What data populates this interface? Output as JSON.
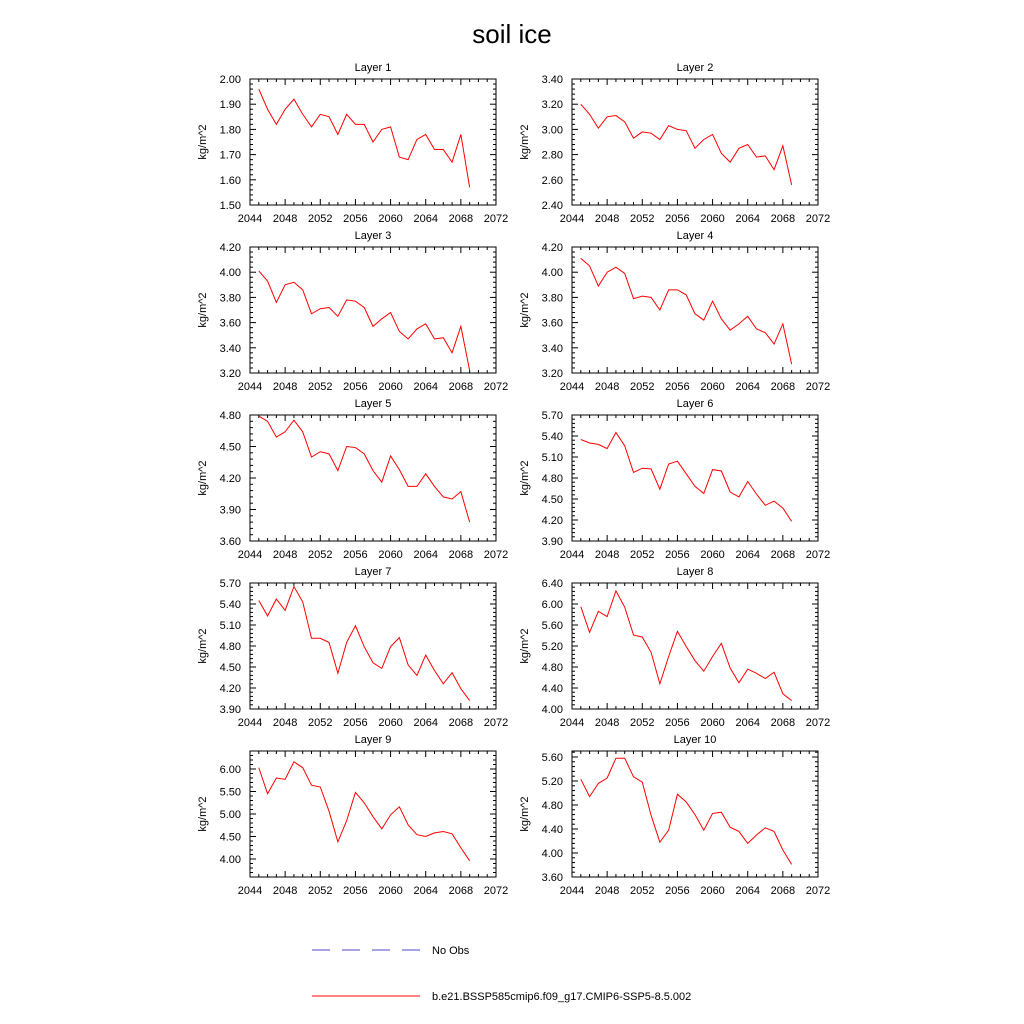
{
  "title": "soil ice",
  "legend": {
    "obs_label": "No Obs",
    "model_label": "b.e21.BSSP585cmip6.f09_g17.CMIP6-SSP5-8.5.002",
    "obs_color": "#4a4acc",
    "model_color": "#ff0000"
  },
  "chart_data": [
    {
      "type": "line",
      "title": "Layer 1",
      "ylabel": "kg/m^2",
      "xlim": [
        2044,
        2072
      ],
      "ylim": [
        1.5,
        2.0
      ],
      "xticks": [
        2044,
        2048,
        2052,
        2056,
        2060,
        2064,
        2068,
        2072
      ],
      "yticks": [
        "1.50",
        "1.60",
        "1.70",
        "1.80",
        "1.90",
        "2.00"
      ],
      "x": [
        2045,
        2046,
        2047,
        2048,
        2049,
        2050,
        2051,
        2052,
        2053,
        2054,
        2055,
        2056,
        2057,
        2058,
        2059,
        2060,
        2061,
        2062,
        2063,
        2064,
        2065,
        2066,
        2067,
        2068,
        2069
      ],
      "y": [
        1.96,
        1.88,
        1.82,
        1.88,
        1.92,
        1.86,
        1.81,
        1.86,
        1.85,
        1.78,
        1.86,
        1.82,
        1.82,
        1.75,
        1.8,
        1.81,
        1.69,
        1.68,
        1.76,
        1.78,
        1.72,
        1.72,
        1.67,
        1.78,
        1.57
      ],
      "grid": false
    },
    {
      "type": "line",
      "title": "Layer 2",
      "ylabel": "kg/m^2",
      "xlim": [
        2044,
        2072
      ],
      "ylim": [
        2.4,
        3.4
      ],
      "xticks": [
        2044,
        2048,
        2052,
        2056,
        2060,
        2064,
        2068,
        2072
      ],
      "yticks": [
        "2.40",
        "2.60",
        "2.80",
        "3.00",
        "3.20",
        "3.40"
      ],
      "x": [
        2045,
        2046,
        2047,
        2048,
        2049,
        2050,
        2051,
        2052,
        2053,
        2054,
        2055,
        2056,
        2057,
        2058,
        2059,
        2060,
        2061,
        2062,
        2063,
        2064,
        2065,
        2066,
        2067,
        2068,
        2069
      ],
      "y": [
        3.2,
        3.12,
        3.01,
        3.1,
        3.11,
        3.06,
        2.93,
        2.98,
        2.97,
        2.92,
        3.03,
        3.0,
        2.99,
        2.85,
        2.92,
        2.96,
        2.81,
        2.74,
        2.85,
        2.88,
        2.78,
        2.79,
        2.68,
        2.87,
        2.56
      ],
      "grid": false
    },
    {
      "type": "line",
      "title": "Layer 3",
      "ylabel": "kg/m^2",
      "xlim": [
        2044,
        2072
      ],
      "ylim": [
        3.2,
        4.2
      ],
      "xticks": [
        2044,
        2048,
        2052,
        2056,
        2060,
        2064,
        2068,
        2072
      ],
      "yticks": [
        "3.20",
        "3.40",
        "3.60",
        "3.80",
        "4.00",
        "4.20"
      ],
      "x": [
        2045,
        2046,
        2047,
        2048,
        2049,
        2050,
        2051,
        2052,
        2053,
        2054,
        2055,
        2056,
        2057,
        2058,
        2059,
        2060,
        2061,
        2062,
        2063,
        2064,
        2065,
        2066,
        2067,
        2068,
        2069
      ],
      "y": [
        4.01,
        3.93,
        3.76,
        3.9,
        3.92,
        3.86,
        3.67,
        3.71,
        3.72,
        3.65,
        3.78,
        3.77,
        3.72,
        3.57,
        3.63,
        3.68,
        3.53,
        3.47,
        3.55,
        3.59,
        3.47,
        3.48,
        3.36,
        3.57,
        3.22
      ],
      "grid": false
    },
    {
      "type": "line",
      "title": "Layer 4",
      "ylabel": "kg/m^2",
      "xlim": [
        2044,
        2072
      ],
      "ylim": [
        3.2,
        4.2
      ],
      "xticks": [
        2044,
        2048,
        2052,
        2056,
        2060,
        2064,
        2068,
        2072
      ],
      "yticks": [
        "3.20",
        "3.40",
        "3.60",
        "3.80",
        "4.00",
        "4.20"
      ],
      "x": [
        2045,
        2046,
        2047,
        2048,
        2049,
        2050,
        2051,
        2052,
        2053,
        2054,
        2055,
        2056,
        2057,
        2058,
        2059,
        2060,
        2061,
        2062,
        2063,
        2064,
        2065,
        2066,
        2067,
        2068,
        2069
      ],
      "y": [
        4.11,
        4.05,
        3.89,
        4.0,
        4.04,
        3.99,
        3.79,
        3.81,
        3.8,
        3.7,
        3.86,
        3.86,
        3.82,
        3.67,
        3.62,
        3.77,
        3.63,
        3.54,
        3.59,
        3.65,
        3.55,
        3.52,
        3.43,
        3.59,
        3.27
      ],
      "grid": false
    },
    {
      "type": "line",
      "title": "Layer 5",
      "ylabel": "kg/m^2",
      "xlim": [
        2044,
        2072
      ],
      "ylim": [
        3.6,
        4.8
      ],
      "xticks": [
        2044,
        2048,
        2052,
        2056,
        2060,
        2064,
        2068,
        2072
      ],
      "yticks": [
        "3.60",
        "3.90",
        "4.20",
        "4.50",
        "4.80"
      ],
      "x": [
        2045,
        2046,
        2047,
        2048,
        2049,
        2050,
        2051,
        2052,
        2053,
        2054,
        2055,
        2056,
        2057,
        2058,
        2059,
        2060,
        2061,
        2062,
        2063,
        2064,
        2065,
        2066,
        2067,
        2068,
        2069
      ],
      "y": [
        4.79,
        4.74,
        4.59,
        4.64,
        4.75,
        4.64,
        4.4,
        4.45,
        4.43,
        4.27,
        4.5,
        4.49,
        4.43,
        4.27,
        4.16,
        4.41,
        4.28,
        4.12,
        4.12,
        4.24,
        4.12,
        4.02,
        4.0,
        4.07,
        3.78
      ],
      "grid": false
    },
    {
      "type": "line",
      "title": "Layer 6",
      "ylabel": "kg/m^2",
      "xlim": [
        2044,
        2072
      ],
      "ylim": [
        3.9,
        5.7
      ],
      "xticks": [
        2044,
        2048,
        2052,
        2056,
        2060,
        2064,
        2068,
        2072
      ],
      "yticks": [
        "3.90",
        "4.20",
        "4.50",
        "4.80",
        "5.10",
        "5.40",
        "5.70"
      ],
      "x": [
        2045,
        2046,
        2047,
        2048,
        2049,
        2050,
        2051,
        2052,
        2053,
        2054,
        2055,
        2056,
        2057,
        2058,
        2059,
        2060,
        2061,
        2062,
        2063,
        2064,
        2065,
        2066,
        2067,
        2068,
        2069
      ],
      "y": [
        5.35,
        5.3,
        5.28,
        5.22,
        5.45,
        5.26,
        4.88,
        4.94,
        4.93,
        4.64,
        5.0,
        5.04,
        4.86,
        4.68,
        4.58,
        4.92,
        4.9,
        4.6,
        4.53,
        4.75,
        4.57,
        4.41,
        4.47,
        4.37,
        4.18
      ],
      "grid": false
    },
    {
      "type": "line",
      "title": "Layer 7",
      "ylabel": "kg/m^2",
      "xlim": [
        2044,
        2072
      ],
      "ylim": [
        3.9,
        5.7
      ],
      "xticks": [
        2044,
        2048,
        2052,
        2056,
        2060,
        2064,
        2068,
        2072
      ],
      "yticks": [
        "3.90",
        "4.20",
        "4.50",
        "4.80",
        "5.10",
        "5.40",
        "5.70"
      ],
      "x": [
        2045,
        2046,
        2047,
        2048,
        2049,
        2050,
        2051,
        2052,
        2053,
        2054,
        2055,
        2056,
        2057,
        2058,
        2059,
        2060,
        2061,
        2062,
        2063,
        2064,
        2065,
        2066,
        2067,
        2068,
        2069
      ],
      "y": [
        5.45,
        5.23,
        5.47,
        5.31,
        5.65,
        5.43,
        4.91,
        4.91,
        4.85,
        4.41,
        4.85,
        5.09,
        4.79,
        4.56,
        4.48,
        4.79,
        4.92,
        4.53,
        4.38,
        4.67,
        4.45,
        4.26,
        4.42,
        4.19,
        4.02
      ],
      "grid": false
    },
    {
      "type": "line",
      "title": "Layer 8",
      "ylabel": "kg/m^2",
      "xlim": [
        2044,
        2072
      ],
      "ylim": [
        4.0,
        6.4
      ],
      "xticks": [
        2044,
        2048,
        2052,
        2056,
        2060,
        2064,
        2068,
        2072
      ],
      "yticks": [
        "4.00",
        "4.40",
        "4.80",
        "5.20",
        "5.60",
        "6.00",
        "6.40"
      ],
      "x": [
        2045,
        2046,
        2047,
        2048,
        2049,
        2050,
        2051,
        2052,
        2053,
        2054,
        2055,
        2056,
        2057,
        2058,
        2059,
        2060,
        2061,
        2062,
        2063,
        2064,
        2065,
        2066,
        2067,
        2068,
        2069
      ],
      "y": [
        5.95,
        5.46,
        5.86,
        5.76,
        6.25,
        5.94,
        5.41,
        5.37,
        5.08,
        4.48,
        5.0,
        5.48,
        5.19,
        4.92,
        4.72,
        5.0,
        5.25,
        4.78,
        4.5,
        4.76,
        4.68,
        4.58,
        4.7,
        4.29,
        4.16
      ],
      "grid": false
    },
    {
      "type": "line",
      "title": "Layer 9",
      "ylabel": "kg/m^2",
      "xlim": [
        2044,
        2072
      ],
      "ylim": [
        3.6,
        6.4
      ],
      "xticks": [
        2044,
        2048,
        2052,
        2056,
        2060,
        2064,
        2068,
        2072
      ],
      "yticks": [
        "4.00",
        "4.50",
        "5.00",
        "5.50",
        "6.00"
      ],
      "x": [
        2045,
        2046,
        2047,
        2048,
        2049,
        2050,
        2051,
        2052,
        2053,
        2054,
        2055,
        2056,
        2057,
        2058,
        2059,
        2060,
        2061,
        2062,
        2063,
        2064,
        2065,
        2066,
        2067,
        2068,
        2069
      ],
      "y": [
        6.03,
        5.45,
        5.8,
        5.77,
        6.16,
        6.03,
        5.64,
        5.6,
        5.06,
        4.38,
        4.85,
        5.48,
        5.25,
        4.94,
        4.67,
        4.98,
        5.16,
        4.76,
        4.54,
        4.5,
        4.58,
        4.61,
        4.56,
        4.25,
        3.96
      ],
      "grid": false
    },
    {
      "type": "line",
      "title": "Layer 10",
      "ylabel": "kg/m^2",
      "xlim": [
        2044,
        2072
      ],
      "ylim": [
        3.6,
        5.7
      ],
      "xticks": [
        2044,
        2048,
        2052,
        2056,
        2060,
        2064,
        2068,
        2072
      ],
      "yticks": [
        "3.60",
        "4.00",
        "4.40",
        "4.80",
        "5.20",
        "5.60"
      ],
      "x": [
        2045,
        2046,
        2047,
        2048,
        2049,
        2050,
        2051,
        2052,
        2053,
        2054,
        2055,
        2056,
        2057,
        2058,
        2059,
        2060,
        2061,
        2062,
        2063,
        2064,
        2065,
        2066,
        2067,
        2068,
        2069
      ],
      "y": [
        5.23,
        4.94,
        5.16,
        5.25,
        5.58,
        5.58,
        5.27,
        5.18,
        4.63,
        4.18,
        4.38,
        4.98,
        4.85,
        4.64,
        4.38,
        4.66,
        4.68,
        4.43,
        4.36,
        4.16,
        4.3,
        4.42,
        4.36,
        4.05,
        3.81
      ],
      "grid": false
    }
  ]
}
